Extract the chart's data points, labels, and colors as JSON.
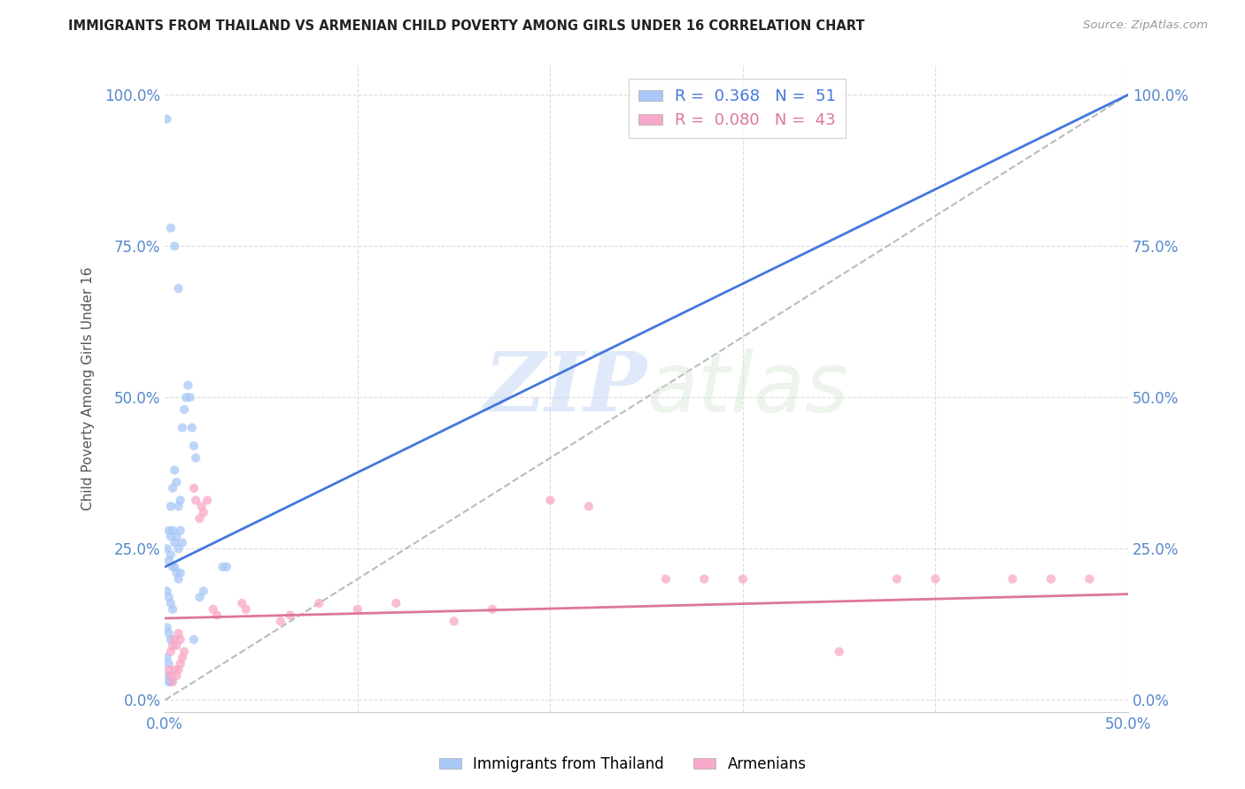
{
  "title": "IMMIGRANTS FROM THAILAND VS ARMENIAN CHILD POVERTY AMONG GIRLS UNDER 16 CORRELATION CHART",
  "source": "Source: ZipAtlas.com",
  "ylabel": "Child Poverty Among Girls Under 16",
  "yticks": [
    "0.0%",
    "25.0%",
    "50.0%",
    "75.0%",
    "100.0%"
  ],
  "ytick_vals": [
    0.0,
    0.25,
    0.5,
    0.75,
    1.0
  ],
  "xlim": [
    0,
    0.5
  ],
  "ylim": [
    -0.02,
    1.05
  ],
  "watermark_zip": "ZIP",
  "watermark_atlas": "atlas",
  "thailand_color": "#a8c8f8",
  "armenian_color": "#f8a8c8",
  "thailand_line_color": "#4477dd",
  "armenian_line_color": "#dd7799",
  "diagonal_color": "#bbbbbb",
  "grid_color": "#dddddd",
  "title_color": "#222222",
  "axis_color": "#5588cc",
  "marker_size": 55,
  "marker_alpha": 0.75,
  "thailand_points": [
    [
      0.001,
      0.96
    ],
    [
      0.003,
      0.78
    ],
    [
      0.005,
      0.75
    ],
    [
      0.007,
      0.68
    ],
    [
      0.009,
      0.45
    ],
    [
      0.01,
      0.48
    ],
    [
      0.011,
      0.5
    ],
    [
      0.012,
      0.52
    ],
    [
      0.013,
      0.5
    ],
    [
      0.014,
      0.45
    ],
    [
      0.015,
      0.42
    ],
    [
      0.016,
      0.4
    ],
    [
      0.003,
      0.32
    ],
    [
      0.004,
      0.35
    ],
    [
      0.005,
      0.38
    ],
    [
      0.006,
      0.36
    ],
    [
      0.007,
      0.32
    ],
    [
      0.008,
      0.33
    ],
    [
      0.002,
      0.28
    ],
    [
      0.003,
      0.27
    ],
    [
      0.004,
      0.28
    ],
    [
      0.005,
      0.26
    ],
    [
      0.006,
      0.27
    ],
    [
      0.007,
      0.25
    ],
    [
      0.008,
      0.28
    ],
    [
      0.009,
      0.26
    ],
    [
      0.001,
      0.25
    ],
    [
      0.002,
      0.23
    ],
    [
      0.003,
      0.24
    ],
    [
      0.004,
      0.22
    ],
    [
      0.005,
      0.22
    ],
    [
      0.006,
      0.21
    ],
    [
      0.007,
      0.2
    ],
    [
      0.008,
      0.21
    ],
    [
      0.001,
      0.18
    ],
    [
      0.002,
      0.17
    ],
    [
      0.003,
      0.16
    ],
    [
      0.004,
      0.15
    ],
    [
      0.001,
      0.12
    ],
    [
      0.002,
      0.11
    ],
    [
      0.003,
      0.1
    ],
    [
      0.001,
      0.07
    ],
    [
      0.002,
      0.06
    ],
    [
      0.001,
      0.04
    ],
    [
      0.002,
      0.03
    ],
    [
      0.003,
      0.03
    ],
    [
      0.03,
      0.22
    ],
    [
      0.032,
      0.22
    ],
    [
      0.02,
      0.18
    ],
    [
      0.018,
      0.17
    ],
    [
      0.015,
      0.1
    ]
  ],
  "armenian_points": [
    [
      0.002,
      0.05
    ],
    [
      0.003,
      0.04
    ],
    [
      0.004,
      0.03
    ],
    [
      0.005,
      0.05
    ],
    [
      0.006,
      0.04
    ],
    [
      0.007,
      0.05
    ],
    [
      0.008,
      0.06
    ],
    [
      0.009,
      0.07
    ],
    [
      0.01,
      0.08
    ],
    [
      0.003,
      0.08
    ],
    [
      0.004,
      0.09
    ],
    [
      0.005,
      0.1
    ],
    [
      0.006,
      0.09
    ],
    [
      0.007,
      0.11
    ],
    [
      0.008,
      0.1
    ],
    [
      0.015,
      0.35
    ],
    [
      0.016,
      0.33
    ],
    [
      0.018,
      0.3
    ],
    [
      0.019,
      0.32
    ],
    [
      0.02,
      0.31
    ],
    [
      0.022,
      0.33
    ],
    [
      0.025,
      0.15
    ],
    [
      0.027,
      0.14
    ],
    [
      0.04,
      0.16
    ],
    [
      0.042,
      0.15
    ],
    [
      0.06,
      0.13
    ],
    [
      0.065,
      0.14
    ],
    [
      0.08,
      0.16
    ],
    [
      0.1,
      0.15
    ],
    [
      0.12,
      0.16
    ],
    [
      0.15,
      0.13
    ],
    [
      0.17,
      0.15
    ],
    [
      0.2,
      0.33
    ],
    [
      0.22,
      0.32
    ],
    [
      0.26,
      0.2
    ],
    [
      0.28,
      0.2
    ],
    [
      0.3,
      0.2
    ],
    [
      0.35,
      0.08
    ],
    [
      0.38,
      0.2
    ],
    [
      0.4,
      0.2
    ],
    [
      0.44,
      0.2
    ],
    [
      0.46,
      0.2
    ],
    [
      0.48,
      0.2
    ]
  ],
  "th_line_x0": 0.0,
  "th_line_y0": 0.22,
  "th_line_x1": 0.5,
  "th_line_y1": 1.0,
  "ar_line_x0": 0.0,
  "ar_line_y0": 0.135,
  "ar_line_x1": 0.5,
  "ar_line_y1": 0.175
}
